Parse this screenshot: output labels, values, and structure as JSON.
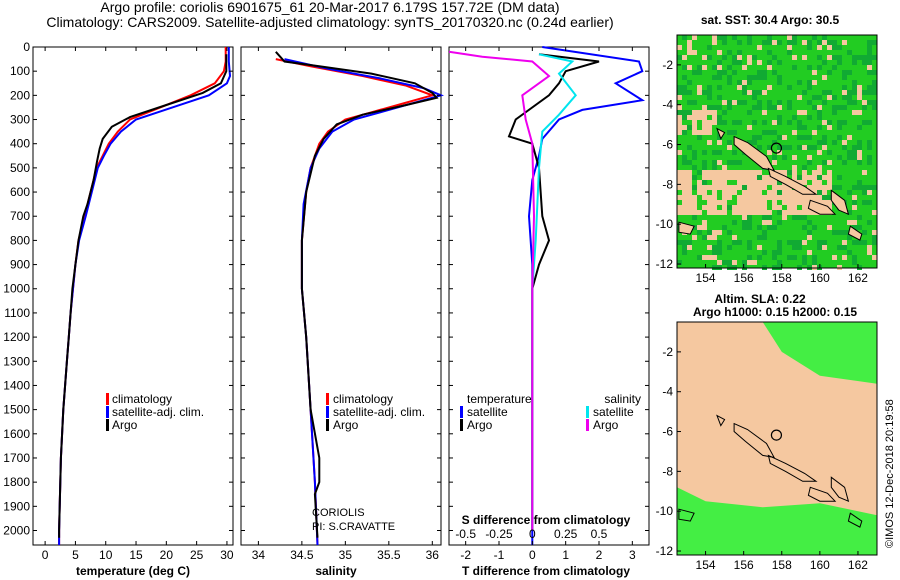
{
  "title": {
    "line1": "Argo profile: coriolis 6901675_61 20-Mar-2017 6.179S 157.72E (DM data)",
    "line2": "Climatology: CARS2009. Satellite-adjusted climatology: synTS_20170320.nc (0.24d earlier)"
  },
  "colors": {
    "climatology": "#ff0000",
    "satellite": "#0000ff",
    "argo": "#000000",
    "sat_salinity": "#00e5ee",
    "argo_salinity": "#ee00ee",
    "land": "#f5c8a0",
    "sea_green": "#22cc22",
    "sea_bright": "#44ee44"
  },
  "chart_data": [
    {
      "type": "line",
      "id": "temperature",
      "xlabel": "temperature (deg C)",
      "ylabel": "",
      "xlim": [
        -2,
        31
      ],
      "ylim": [
        2060,
        0
      ],
      "xticks": [
        0,
        5,
        10,
        15,
        20,
        25,
        30
      ],
      "yticks": [
        0,
        100,
        200,
        300,
        400,
        500,
        600,
        700,
        800,
        900,
        1000,
        1100,
        1200,
        1300,
        1400,
        1500,
        1600,
        1700,
        1800,
        1900,
        2000
      ],
      "legend": [
        "climatology",
        "satellite-adj. clim.",
        "Argo"
      ],
      "series": [
        {
          "name": "climatology",
          "color": "#ff0000",
          "points": [
            [
              29.8,
              0
            ],
            [
              29.8,
              60
            ],
            [
              29.5,
              100
            ],
            [
              28,
              150
            ],
            [
              24,
              200
            ],
            [
              19,
              250
            ],
            [
              14,
              300
            ],
            [
              12,
              350
            ],
            [
              10.5,
              400
            ],
            [
              9.5,
              450
            ],
            [
              8.5,
              500
            ],
            [
              7.5,
              600
            ],
            [
              6.5,
              700
            ],
            [
              5.5,
              800
            ],
            [
              5,
              900
            ],
            [
              4.6,
              1000
            ],
            [
              4.2,
              1100
            ],
            [
              3.9,
              1200
            ],
            [
              3.6,
              1300
            ],
            [
              3.3,
              1400
            ],
            [
              3,
              1500
            ],
            [
              2.8,
              1600
            ],
            [
              2.6,
              1700
            ],
            [
              2.5,
              1800
            ],
            [
              2.4,
              1900
            ],
            [
              2.3,
              2000
            ],
            [
              2.3,
              2060
            ]
          ]
        },
        {
          "name": "satellite-adj. clim.",
          "color": "#0000ff",
          "points": [
            [
              30.3,
              0
            ],
            [
              30.3,
              60
            ],
            [
              30.5,
              120
            ],
            [
              30,
              150
            ],
            [
              27,
              200
            ],
            [
              21,
              250
            ],
            [
              15,
              300
            ],
            [
              12.5,
              350
            ],
            [
              10.8,
              400
            ],
            [
              9.7,
              450
            ],
            [
              8.7,
              500
            ],
            [
              7.7,
              600
            ],
            [
              6.7,
              700
            ],
            [
              5.6,
              800
            ],
            [
              5,
              900
            ],
            [
              4.6,
              1000
            ],
            [
              4.2,
              1100
            ],
            [
              3.9,
              1200
            ],
            [
              3.6,
              1300
            ],
            [
              3.3,
              1400
            ],
            [
              3,
              1500
            ],
            [
              2.8,
              1600
            ],
            [
              2.6,
              1700
            ],
            [
              2.5,
              1800
            ],
            [
              2.4,
              1900
            ],
            [
              2.3,
              2000
            ],
            [
              2.3,
              2060
            ]
          ]
        },
        {
          "name": "Argo",
          "color": "#000000",
          "points": [
            [
              29.9,
              30
            ],
            [
              29.9,
              100
            ],
            [
              29,
              150
            ],
            [
              26,
              190
            ],
            [
              20,
              240
            ],
            [
              14,
              290
            ],
            [
              11,
              330
            ],
            [
              9.5,
              380
            ],
            [
              9,
              420
            ],
            [
              8.6,
              470
            ],
            [
              8,
              550
            ],
            [
              7,
              650
            ],
            [
              6.3,
              700
            ],
            [
              5.5,
              800
            ],
            [
              5,
              900
            ],
            [
              4.5,
              1000
            ],
            [
              4.2,
              1100
            ],
            [
              3.9,
              1200
            ],
            [
              3.6,
              1300
            ],
            [
              3.3,
              1400
            ],
            [
              3,
              1500
            ],
            [
              2.8,
              1600
            ],
            [
              2.6,
              1700
            ],
            [
              2.5,
              1800
            ],
            [
              2.4,
              1900
            ],
            [
              2.3,
              2000
            ],
            [
              2.3,
              2030
            ]
          ]
        }
      ]
    },
    {
      "type": "line",
      "id": "salinity",
      "xlabel": "salinity",
      "xlim": [
        33.8,
        36.1
      ],
      "ylim": [
        2060,
        0
      ],
      "xticks": [
        34,
        34.5,
        35,
        35.5,
        36
      ],
      "legend": [
        "climatology",
        "satellite-adj. clim.",
        "Argo"
      ],
      "annotation": [
        "CORIOLIS",
        "PI: S.CRAVATTE"
      ],
      "series": [
        {
          "name": "climatology",
          "color": "#ff0000",
          "points": [
            [
              34.2,
              50
            ],
            [
              34.6,
              80
            ],
            [
              35.2,
              120
            ],
            [
              35.7,
              160
            ],
            [
              36.0,
              200
            ],
            [
              35.7,
              230
            ],
            [
              35.3,
              270
            ],
            [
              35.0,
              300
            ],
            [
              34.8,
              350
            ],
            [
              34.7,
              400
            ],
            [
              34.6,
              500
            ],
            [
              34.55,
              600
            ],
            [
              34.5,
              800
            ],
            [
              34.5,
              1000
            ],
            [
              34.55,
              1200
            ],
            [
              34.6,
              1500
            ],
            [
              34.65,
              1800
            ],
            [
              34.68,
              2060
            ]
          ]
        },
        {
          "name": "satellite-adj. clim.",
          "color": "#0000ff",
          "points": [
            [
              34.3,
              50
            ],
            [
              34.8,
              90
            ],
            [
              35.4,
              130
            ],
            [
              35.9,
              170
            ],
            [
              36.1,
              200
            ],
            [
              35.9,
              220
            ],
            [
              35.5,
              260
            ],
            [
              35.1,
              300
            ],
            [
              34.85,
              350
            ],
            [
              34.7,
              420
            ],
            [
              34.6,
              500
            ],
            [
              34.52,
              650
            ],
            [
              34.5,
              800
            ],
            [
              34.5,
              1000
            ],
            [
              34.55,
              1200
            ],
            [
              34.6,
              1500
            ],
            [
              34.65,
              1800
            ],
            [
              34.68,
              2060
            ]
          ]
        },
        {
          "name": "Argo",
          "color": "#000000",
          "points": [
            [
              34.2,
              20
            ],
            [
              34.3,
              60
            ],
            [
              34.7,
              80
            ],
            [
              35.3,
              110
            ],
            [
              35.8,
              150
            ],
            [
              36.0,
              190
            ],
            [
              36.05,
              210
            ],
            [
              35.7,
              240
            ],
            [
              35.2,
              280
            ],
            [
              34.9,
              320
            ],
            [
              34.75,
              380
            ],
            [
              34.65,
              450
            ],
            [
              34.55,
              600
            ],
            [
              34.5,
              800
            ],
            [
              34.5,
              1000
            ],
            [
              34.55,
              1200
            ],
            [
              34.6,
              1500
            ],
            [
              34.7,
              1700
            ],
            [
              34.7,
              1800
            ],
            [
              34.65,
              1850
            ],
            [
              34.68,
              2030
            ]
          ]
        }
      ]
    },
    {
      "type": "line",
      "id": "differences",
      "xlabel": "T difference from climatology",
      "xlabel_top": "S difference from climatology",
      "xlim": [
        -2.5,
        3.5
      ],
      "ylim": [
        2060,
        0
      ],
      "xticks": [
        -2,
        -1,
        0,
        1,
        2,
        3
      ],
      "xticks_s": [
        -0.5,
        -0.25,
        0,
        0.25,
        0.5
      ],
      "xticklabels_s": [
        "-0.5",
        "-0.25",
        "0",
        "0.25",
        "0.5"
      ],
      "legend_left_title": "temperature",
      "legend_right_title": "salinity",
      "legend_left": [
        "satellite",
        "Argo"
      ],
      "legend_right": [
        "satellite",
        "Argo"
      ],
      "series": [
        {
          "name": "T satellite",
          "color": "#0000ff",
          "points": [
            [
              0.3,
              0
            ],
            [
              3.2,
              60
            ],
            [
              3.3,
              100
            ],
            [
              2.5,
              150
            ],
            [
              3.3,
              220
            ],
            [
              1.5,
              260
            ],
            [
              0.8,
              300
            ],
            [
              0.3,
              380
            ],
            [
              0.2,
              450
            ],
            [
              0,
              550
            ],
            [
              -0.1,
              700
            ],
            [
              0,
              900
            ],
            [
              0,
              1100
            ],
            [
              0,
              1500
            ],
            [
              0,
              1800
            ],
            [
              0,
              2060
            ]
          ]
        },
        {
          "name": "T Argo",
          "color": "#000000",
          "points": [
            [
              0.2,
              30
            ],
            [
              2.0,
              60
            ],
            [
              1.0,
              100
            ],
            [
              0.8,
              150
            ],
            [
              0.5,
              200
            ],
            [
              -0.5,
              300
            ],
            [
              -0.7,
              370
            ],
            [
              0,
              400
            ],
            [
              0.2,
              500
            ],
            [
              0.3,
              700
            ],
            [
              0.5,
              800
            ],
            [
              0.2,
              900
            ],
            [
              0,
              1000
            ],
            [
              0,
              1200
            ],
            [
              0,
              1500
            ],
            [
              0,
              1800
            ],
            [
              0,
              2000
            ]
          ]
        },
        {
          "name": "S satellite",
          "color": "#00e5ee",
          "points": [
            [
              0.2,
              30
            ],
            [
              1.2,
              60
            ],
            [
              0.8,
              110
            ],
            [
              1.3,
              200
            ],
            [
              0.8,
              280
            ],
            [
              0.3,
              350
            ],
            [
              0.2,
              500
            ],
            [
              0.1,
              800
            ],
            [
              0,
              1000
            ],
            [
              0,
              1200
            ],
            [
              0,
              1500
            ],
            [
              0,
              1800
            ],
            [
              0,
              2000
            ]
          ]
        },
        {
          "name": "S Argo",
          "color": "#ee00ee",
          "points": [
            [
              -2.5,
              20
            ],
            [
              -1.5,
              40
            ],
            [
              0,
              60
            ],
            [
              0.5,
              120
            ],
            [
              -0.3,
              200
            ],
            [
              -0.2,
              300
            ],
            [
              0,
              400
            ],
            [
              0.05,
              700
            ],
            [
              0,
              1000
            ],
            [
              0,
              1500
            ],
            [
              0,
              1800
            ],
            [
              0,
              2000
            ]
          ]
        }
      ]
    },
    {
      "type": "heatmap",
      "id": "sst_map",
      "title": "sat. SST: 30.4 Argo: 30.5",
      "xlim": [
        152.5,
        163
      ],
      "ylim": [
        -12.2,
        -0.5
      ],
      "xticks": [
        154,
        156,
        158,
        160,
        162
      ],
      "yticks": [
        -2,
        -4,
        -6,
        -8,
        -10,
        -12
      ],
      "float_marker": [
        157.72,
        -6.179
      ]
    },
    {
      "type": "heatmap",
      "id": "sla_map",
      "title_line1": "Altim. SLA: 0.22",
      "title_line2": "Argo h1000: 0.15 h2000: 0.15",
      "xlim": [
        152.5,
        163
      ],
      "ylim": [
        -12.2,
        -0.5
      ],
      "xticks": [
        154,
        156,
        158,
        160,
        162
      ],
      "yticks": [
        -2,
        -4,
        -6,
        -8,
        -10,
        -12
      ],
      "float_marker": [
        157.72,
        -6.179
      ]
    }
  ],
  "footer": {
    "credit": "©IMOS 12-Dec-2018 20:19:58"
  }
}
